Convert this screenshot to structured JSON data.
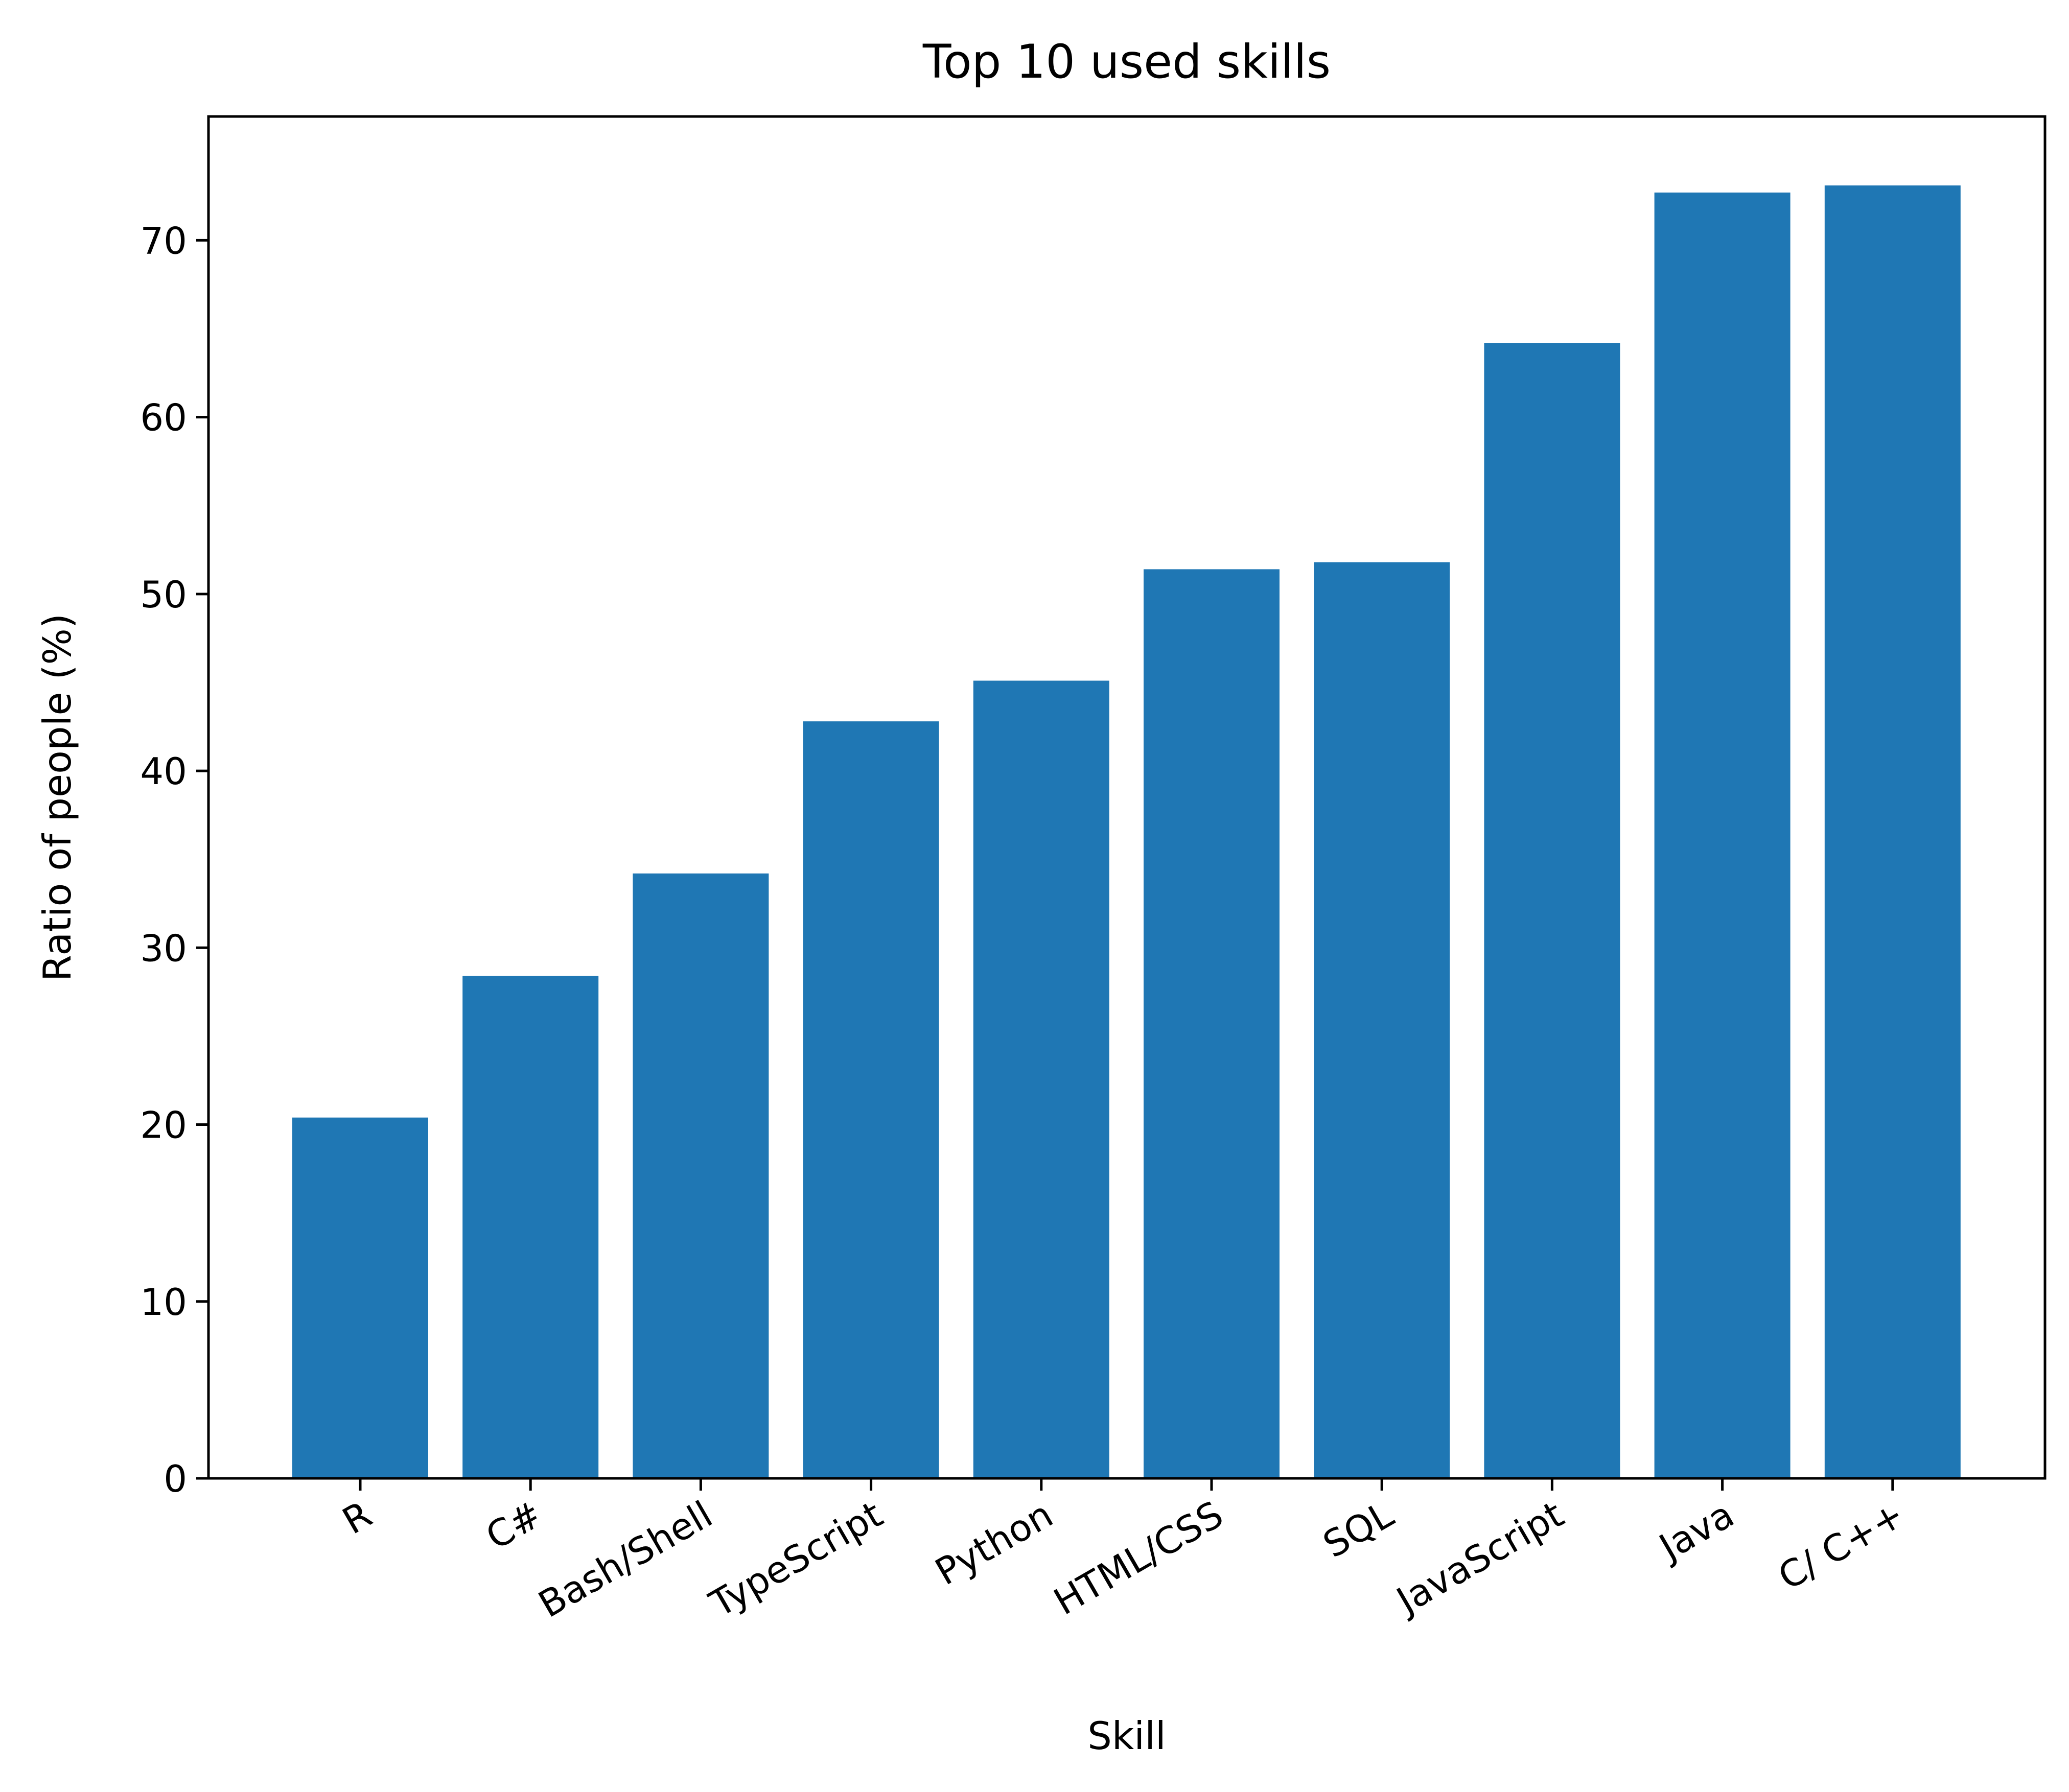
{
  "chart_data": {
    "type": "bar",
    "title": "Top 10 used skills",
    "xlabel": "Skill",
    "ylabel": "Ratio of people (%)",
    "categories": [
      "R",
      "C#",
      "Bash/Shell",
      "TypeScript",
      "Python",
      "HTML/CSS",
      "SQL",
      "JavaScript",
      "Java",
      "C/ C++"
    ],
    "values": [
      20.4,
      28.4,
      34.2,
      42.8,
      45.1,
      51.4,
      51.8,
      64.2,
      72.7,
      73.1
    ],
    "ylim": [
      0,
      77
    ],
    "yticks": [
      0,
      10,
      20,
      30,
      40,
      50,
      60,
      70
    ],
    "bar_color": "#1f77b4",
    "grid": false,
    "legend": "none"
  }
}
